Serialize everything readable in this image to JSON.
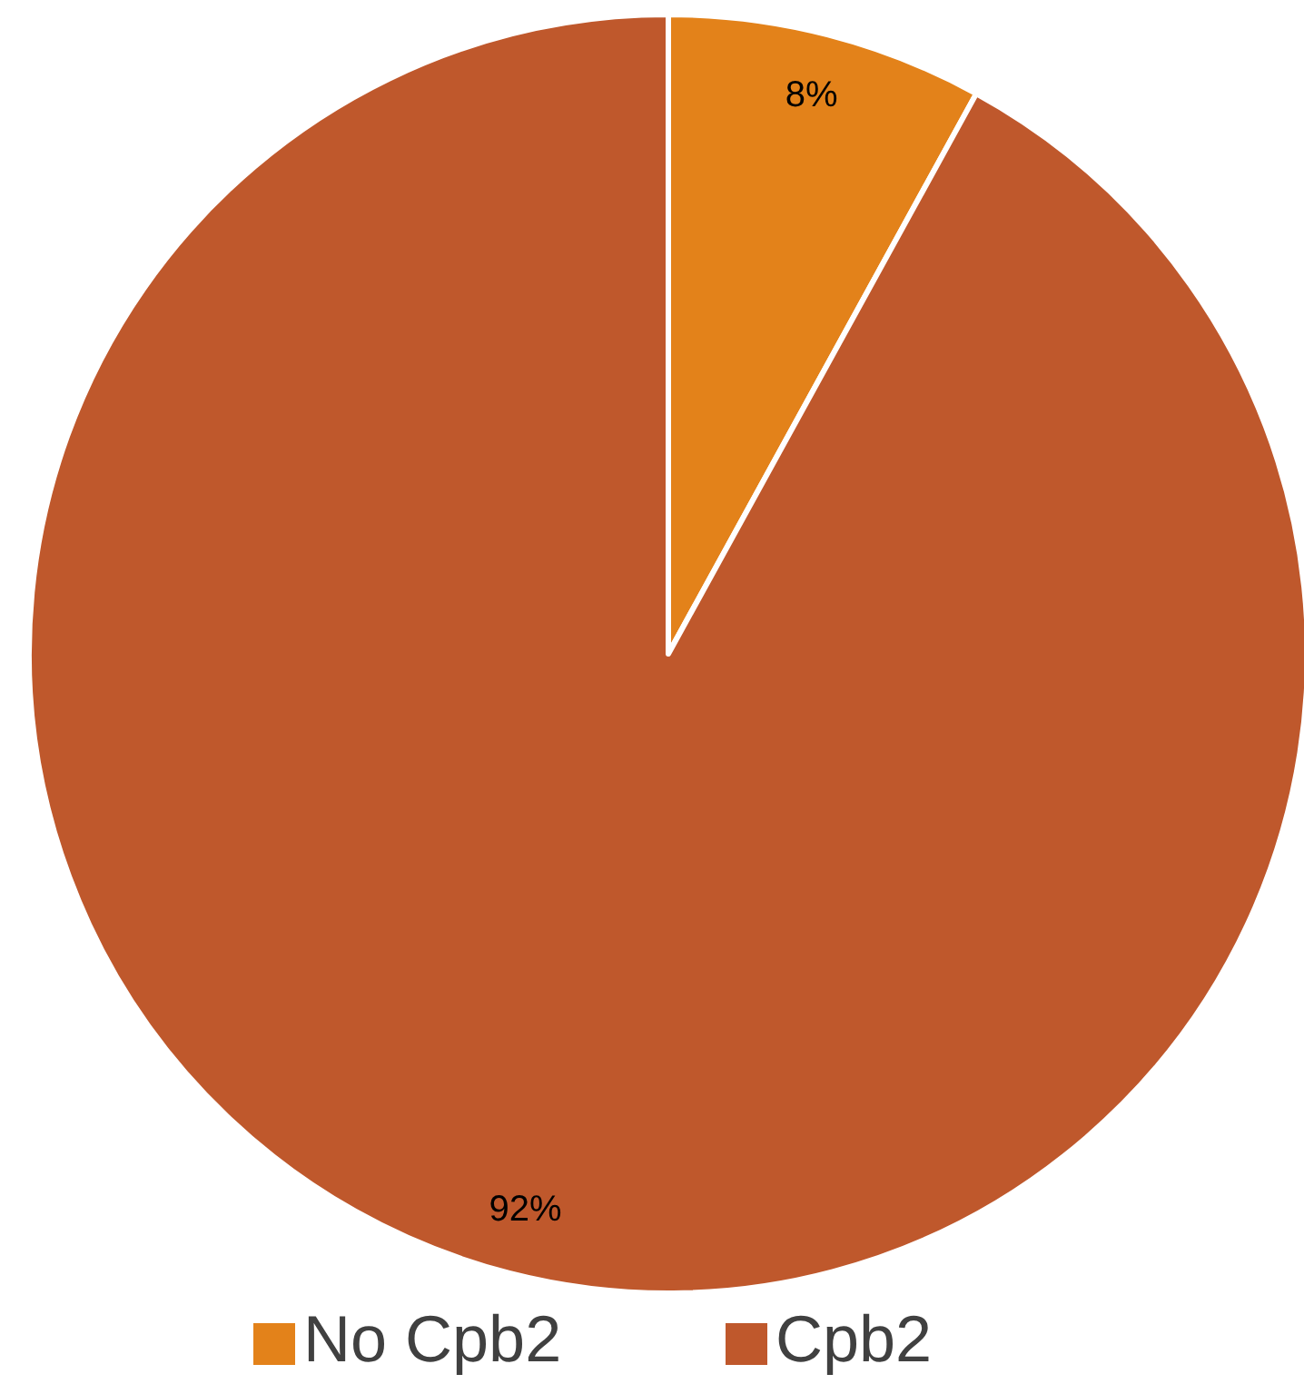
{
  "chart_data": {
    "type": "pie",
    "categories": [
      "No Cpb2",
      "Cpb2"
    ],
    "values": [
      8,
      92
    ],
    "colors": [
      "#e3821a",
      "#bf582c"
    ],
    "value_labels": [
      "8%",
      "92%"
    ],
    "legend": "bottom"
  }
}
